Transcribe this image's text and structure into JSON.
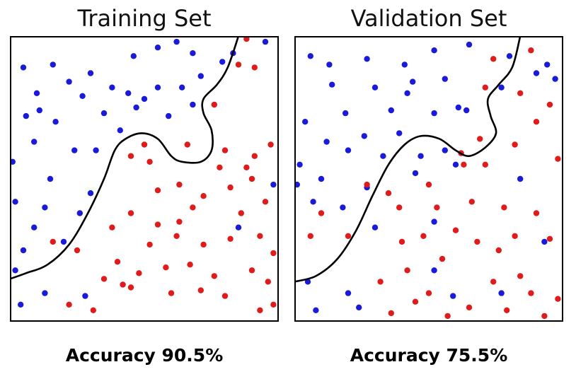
{
  "colors": {
    "class_a": "#1a1adb",
    "class_b": "#e01b1b",
    "frame": "#000000",
    "boundary": "#000000"
  },
  "chart_data": [
    {
      "type": "scatter",
      "title": "Training Set",
      "caption": "Accuracy 90.5%",
      "xlim": [
        0,
        1
      ],
      "ylim": [
        0,
        1
      ],
      "grid": false,
      "boundary": [
        [
          0.0,
          0.15
        ],
        [
          0.06,
          0.17
        ],
        [
          0.14,
          0.2
        ],
        [
          0.22,
          0.27
        ],
        [
          0.29,
          0.38
        ],
        [
          0.35,
          0.5
        ],
        [
          0.39,
          0.6
        ],
        [
          0.43,
          0.64
        ],
        [
          0.49,
          0.66
        ],
        [
          0.55,
          0.64
        ],
        [
          0.6,
          0.58
        ],
        [
          0.64,
          0.56
        ],
        [
          0.71,
          0.56
        ],
        [
          0.75,
          0.6
        ],
        [
          0.75,
          0.67
        ],
        [
          0.72,
          0.73
        ],
        [
          0.72,
          0.78
        ],
        [
          0.77,
          0.83
        ],
        [
          0.81,
          0.89
        ],
        [
          0.85,
          1.0
        ]
      ],
      "series": [
        {
          "color": "blue",
          "points": [
            [
              0.05,
              0.89
            ],
            [
              0.16,
              0.9
            ],
            [
              0.3,
              0.87
            ],
            [
              0.46,
              0.93
            ],
            [
              0.55,
              0.96
            ],
            [
              0.62,
              0.98
            ],
            [
              0.68,
              0.94
            ],
            [
              0.79,
              0.91
            ],
            [
              0.1,
              0.8
            ],
            [
              0.27,
              0.79
            ],
            [
              0.44,
              0.8
            ],
            [
              0.55,
              0.82
            ],
            [
              0.64,
              0.82
            ],
            [
              0.71,
              0.86
            ],
            [
              0.17,
              0.7
            ],
            [
              0.35,
              0.73
            ],
            [
              0.47,
              0.75
            ],
            [
              0.59,
              0.72
            ],
            [
              0.68,
              0.76
            ],
            [
              0.09,
              0.63
            ],
            [
              0.24,
              0.6
            ],
            [
              0.41,
              0.67
            ],
            [
              0.01,
              0.56
            ],
            [
              0.15,
              0.5
            ],
            [
              0.3,
              0.45
            ],
            [
              0.02,
              0.42
            ],
            [
              0.13,
              0.4
            ],
            [
              0.26,
              0.38
            ],
            [
              0.05,
              0.25
            ],
            [
              0.2,
              0.28
            ],
            [
              0.02,
              0.18
            ],
            [
              0.13,
              0.1
            ],
            [
              0.28,
              0.09
            ],
            [
              0.98,
              0.48
            ],
            [
              0.95,
              0.98
            ],
            [
              0.83,
              0.94
            ],
            [
              0.11,
              0.74
            ],
            [
              0.38,
              0.82
            ],
            [
              0.5,
              0.78
            ],
            [
              0.22,
              0.84
            ],
            [
              0.06,
              0.72
            ],
            [
              0.32,
              0.6
            ],
            [
              0.09,
              0.33
            ],
            [
              0.85,
              0.33
            ],
            [
              0.04,
              0.06
            ]
          ]
        },
        {
          "color": "red",
          "points": [
            [
              0.88,
              0.99
            ],
            [
              0.91,
              0.89
            ],
            [
              0.85,
              0.9
            ],
            [
              0.76,
              0.76
            ],
            [
              0.8,
              0.6
            ],
            [
              0.91,
              0.58
            ],
            [
              0.97,
              0.62
            ],
            [
              0.9,
              0.5
            ],
            [
              0.82,
              0.47
            ],
            [
              0.95,
              0.42
            ],
            [
              0.86,
              0.38
            ],
            [
              0.93,
              0.3
            ],
            [
              0.98,
              0.24
            ],
            [
              0.72,
              0.44
            ],
            [
              0.63,
              0.48
            ],
            [
              0.52,
              0.56
            ],
            [
              0.45,
              0.58
            ],
            [
              0.55,
              0.46
            ],
            [
              0.45,
              0.38
            ],
            [
              0.38,
              0.33
            ],
            [
              0.55,
              0.34
            ],
            [
              0.62,
              0.3
            ],
            [
              0.72,
              0.27
            ],
            [
              0.82,
              0.29
            ],
            [
              0.4,
              0.21
            ],
            [
              0.48,
              0.17
            ],
            [
              0.58,
              0.19
            ],
            [
              0.67,
              0.2
            ],
            [
              0.76,
              0.16
            ],
            [
              0.9,
              0.18
            ],
            [
              0.96,
              0.14
            ],
            [
              0.45,
              0.12
            ],
            [
              0.6,
              0.1
            ],
            [
              0.71,
              0.11
            ],
            [
              0.8,
              0.09
            ],
            [
              0.93,
              0.04
            ],
            [
              0.98,
              0.06
            ],
            [
              0.31,
              0.04
            ],
            [
              0.22,
              0.06
            ],
            [
              0.25,
              0.25
            ],
            [
              0.16,
              0.28
            ],
            [
              0.5,
              0.62
            ],
            [
              0.66,
              0.62
            ],
            [
              0.78,
              0.54
            ],
            [
              0.88,
              0.54
            ],
            [
              0.35,
              0.15
            ],
            [
              0.42,
              0.13
            ],
            [
              0.52,
              0.27
            ],
            [
              0.63,
              0.35
            ],
            [
              0.68,
              0.4
            ]
          ]
        }
      ]
    },
    {
      "type": "scatter",
      "title": "Validation Set",
      "caption": "Accuracy 75.5%",
      "xlim": [
        0,
        1
      ],
      "ylim": [
        0,
        1
      ],
      "grid": false,
      "boundary": [
        [
          0.0,
          0.14
        ],
        [
          0.08,
          0.16
        ],
        [
          0.16,
          0.22
        ],
        [
          0.23,
          0.32
        ],
        [
          0.29,
          0.44
        ],
        [
          0.35,
          0.55
        ],
        [
          0.41,
          0.62
        ],
        [
          0.47,
          0.65
        ],
        [
          0.54,
          0.64
        ],
        [
          0.6,
          0.6
        ],
        [
          0.65,
          0.58
        ],
        [
          0.71,
          0.61
        ],
        [
          0.75,
          0.66
        ],
        [
          0.73,
          0.72
        ],
        [
          0.72,
          0.78
        ],
        [
          0.76,
          0.83
        ],
        [
          0.81,
          0.89
        ],
        [
          0.84,
          1.0
        ]
      ],
      "series": [
        {
          "color": "blue",
          "points": [
            [
              0.06,
              0.93
            ],
            [
              0.13,
              0.9
            ],
            [
              0.27,
              0.92
            ],
            [
              0.41,
              0.9
            ],
            [
              0.52,
              0.95
            ],
            [
              0.65,
              0.97
            ],
            [
              0.8,
              0.93
            ],
            [
              0.94,
              0.9
            ],
            [
              0.97,
              0.85
            ],
            [
              0.14,
              0.83
            ],
            [
              0.3,
              0.82
            ],
            [
              0.42,
              0.8
            ],
            [
              0.56,
              0.85
            ],
            [
              0.61,
              0.75
            ],
            [
              0.77,
              0.82
            ],
            [
              0.9,
              0.87
            ],
            [
              0.19,
              0.73
            ],
            [
              0.36,
              0.74
            ],
            [
              0.52,
              0.73
            ],
            [
              0.64,
              0.74
            ],
            [
              0.04,
              0.7
            ],
            [
              0.2,
              0.6
            ],
            [
              0.33,
              0.58
            ],
            [
              0.47,
              0.58
            ],
            [
              0.6,
              0.55
            ],
            [
              0.02,
              0.55
            ],
            [
              0.1,
              0.5
            ],
            [
              0.27,
              0.47
            ],
            [
              0.45,
              0.52
            ],
            [
              0.52,
              0.35
            ],
            [
              0.3,
              0.33
            ],
            [
              0.07,
              0.42
            ],
            [
              0.18,
              0.4
            ],
            [
              0.05,
              0.14
            ],
            [
              0.2,
              0.1
            ],
            [
              0.08,
              0.04
            ],
            [
              0.52,
              0.18
            ],
            [
              0.59,
              0.09
            ],
            [
              0.24,
              0.05
            ],
            [
              0.77,
              0.1
            ],
            [
              0.93,
              0.28
            ],
            [
              0.84,
              0.5
            ],
            [
              0.12,
              0.63
            ],
            [
              0.26,
              0.65
            ],
            [
              0.39,
              0.66
            ],
            [
              0.56,
              0.6
            ],
            [
              0.44,
              0.84
            ],
            [
              0.01,
              0.48
            ]
          ]
        },
        {
          "color": "red",
          "points": [
            [
              0.74,
              0.92
            ],
            [
              0.88,
              0.95
            ],
            [
              0.84,
              0.8
            ],
            [
              0.71,
              0.82
            ],
            [
              0.9,
              0.7
            ],
            [
              0.98,
              0.57
            ],
            [
              0.82,
              0.62
            ],
            [
              0.71,
              0.55
            ],
            [
              0.63,
              0.55
            ],
            [
              0.5,
              0.48
            ],
            [
              0.35,
              0.45
            ],
            [
              0.27,
              0.48
            ],
            [
              0.39,
              0.4
            ],
            [
              0.53,
              0.4
            ],
            [
              0.66,
              0.42
            ],
            [
              0.78,
              0.4
            ],
            [
              0.9,
              0.38
            ],
            [
              0.95,
              0.29
            ],
            [
              0.82,
              0.3
            ],
            [
              0.68,
              0.28
            ],
            [
              0.55,
              0.22
            ],
            [
              0.42,
              0.18
            ],
            [
              0.32,
              0.14
            ],
            [
              0.36,
              0.03
            ],
            [
              0.5,
              0.1
            ],
            [
              0.65,
              0.05
            ],
            [
              0.79,
              0.04
            ],
            [
              0.93,
              0.02
            ],
            [
              0.1,
              0.38
            ],
            [
              0.2,
              0.3
            ],
            [
              0.06,
              0.3
            ],
            [
              0.4,
              0.28
            ],
            [
              0.6,
              0.32
            ],
            [
              0.76,
              0.25
            ],
            [
              0.84,
              0.16
            ],
            [
              0.88,
              0.1
            ],
            [
              0.98,
              0.08
            ],
            [
              0.45,
              0.07
            ],
            [
              0.57,
              0.02
            ],
            [
              0.74,
              0.14
            ],
            [
              0.95,
              0.76
            ],
            [
              0.62,
              0.59
            ],
            [
              0.69,
              0.64
            ],
            [
              0.48,
              0.3
            ]
          ]
        }
      ]
    }
  ]
}
